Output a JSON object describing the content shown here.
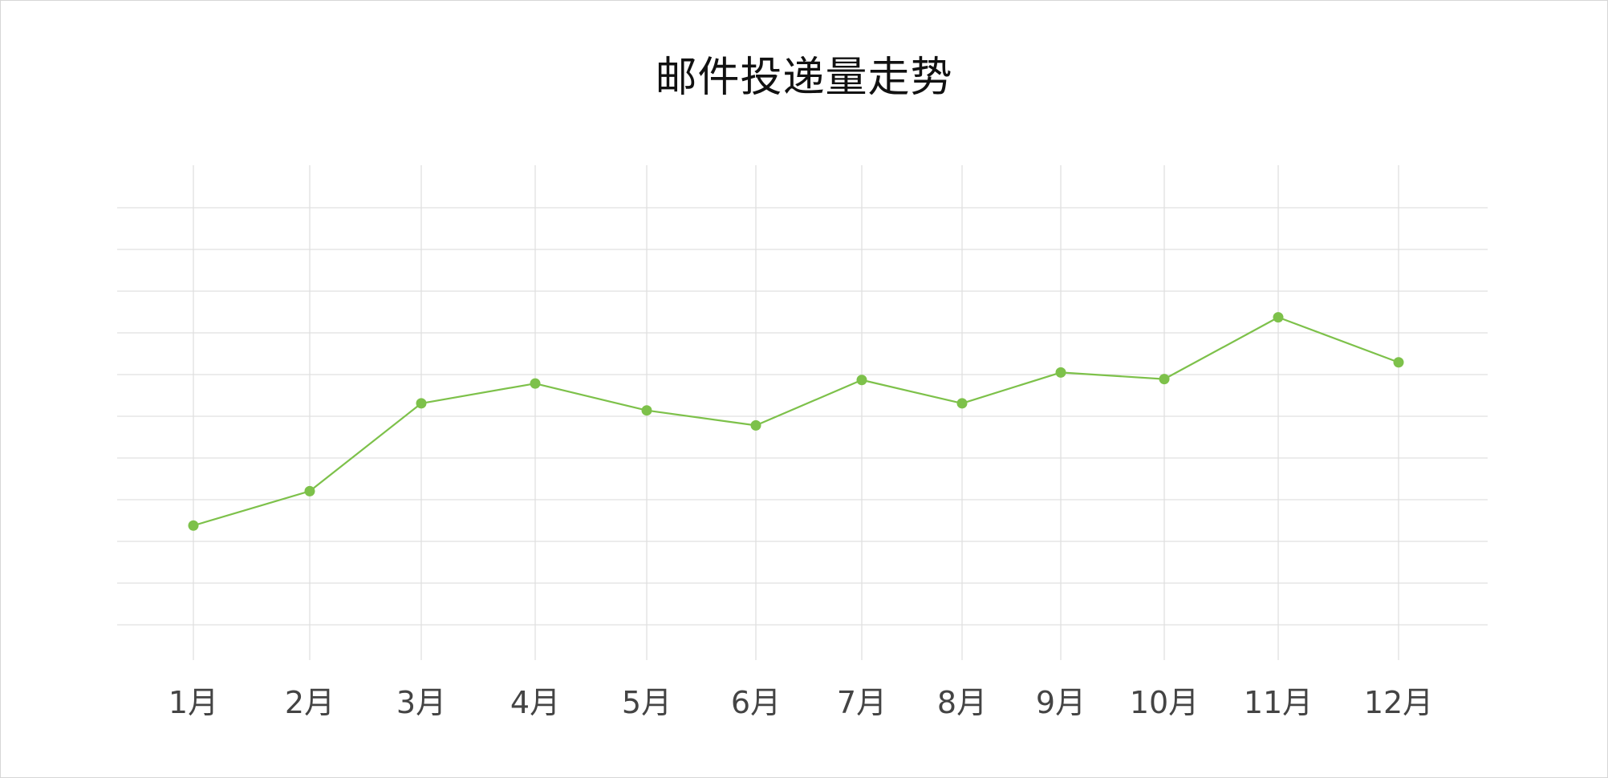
{
  "chart_data": {
    "type": "line",
    "title": "邮件投递量走势",
    "xlabel": "",
    "ylabel": "",
    "categories": [
      "1月",
      "2月",
      "3月",
      "4月",
      "5月",
      "6月",
      "7月",
      "8月",
      "9月",
      "10月",
      "11月",
      "12月"
    ],
    "series": [
      {
        "values": [
          3.05,
          3.83,
          5.82,
          6.27,
          5.66,
          5.32,
          6.35,
          5.82,
          6.52,
          6.37,
          7.77,
          6.75
        ]
      }
    ],
    "ylim": [
      0,
      11
    ],
    "y_gridlines": 11,
    "grid": true,
    "show_y_tick_labels": false,
    "legend": "none",
    "colors": {
      "line": "#7dc14a",
      "marker": "#7dc14a",
      "grid": "#e0e0e0",
      "tick_text": "#444444"
    }
  }
}
